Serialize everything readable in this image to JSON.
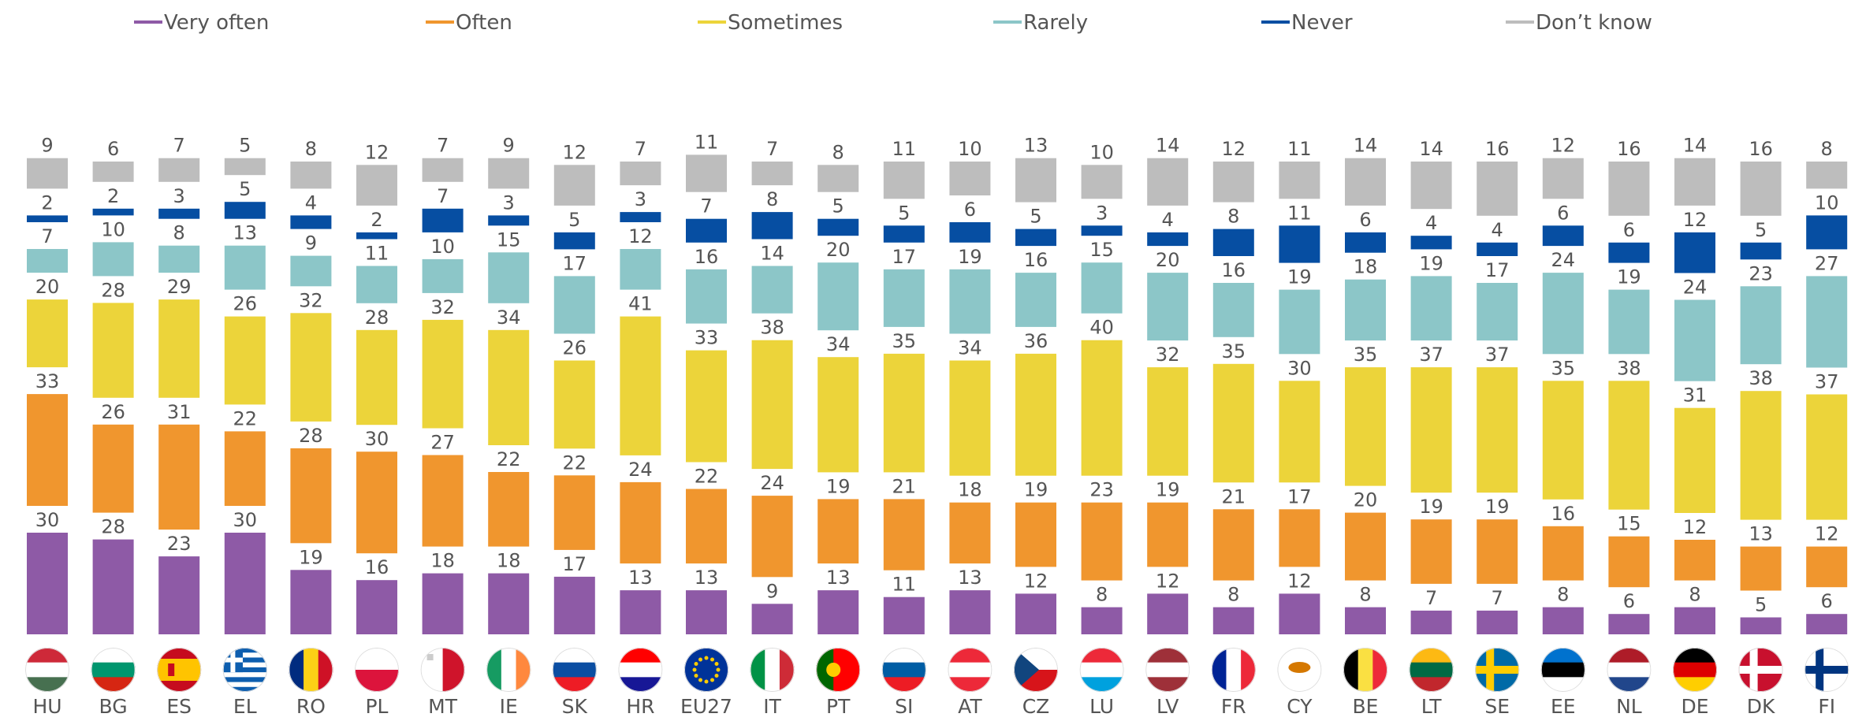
{
  "chart_data": {
    "type": "bar",
    "stacked": true,
    "categories": [
      "HU",
      "BG",
      "ES",
      "EL",
      "RO",
      "PL",
      "MT",
      "IE",
      "SK",
      "HR",
      "EU27",
      "IT",
      "PT",
      "SI",
      "AT",
      "CZ",
      "LU",
      "LV",
      "FR",
      "CY",
      "BE",
      "LT",
      "SE",
      "EE",
      "NL",
      "DE",
      "DK",
      "FI"
    ],
    "series": [
      {
        "name": "Very often",
        "color": "#8e5aa6",
        "values": [
          30,
          28,
          23,
          30,
          19,
          16,
          18,
          18,
          17,
          13,
          13,
          9,
          13,
          11,
          13,
          12,
          8,
          12,
          8,
          12,
          8,
          7,
          7,
          8,
          6,
          8,
          5,
          6
        ]
      },
      {
        "name": "Often",
        "color": "#f0962e",
        "values": [
          33,
          26,
          31,
          22,
          28,
          30,
          27,
          22,
          22,
          24,
          22,
          24,
          19,
          21,
          18,
          19,
          23,
          19,
          21,
          17,
          20,
          19,
          19,
          16,
          15,
          12,
          13,
          12
        ]
      },
      {
        "name": "Sometimes",
        "color": "#ecd43a",
        "values": [
          20,
          28,
          29,
          26,
          32,
          28,
          32,
          34,
          26,
          41,
          33,
          38,
          34,
          35,
          34,
          36,
          40,
          32,
          35,
          30,
          35,
          37,
          37,
          35,
          38,
          31,
          38,
          37
        ]
      },
      {
        "name": "Rarely",
        "color": "#8cc6c8",
        "values": [
          7,
          10,
          8,
          13,
          9,
          11,
          10,
          15,
          17,
          12,
          16,
          14,
          20,
          17,
          19,
          16,
          15,
          20,
          16,
          19,
          18,
          19,
          17,
          24,
          19,
          24,
          23,
          27
        ]
      },
      {
        "name": "Never",
        "color": "#064ea2",
        "values": [
          2,
          2,
          3,
          5,
          4,
          2,
          7,
          3,
          5,
          3,
          7,
          8,
          5,
          5,
          6,
          5,
          3,
          4,
          8,
          11,
          6,
          4,
          4,
          6,
          6,
          12,
          5,
          10
        ]
      },
      {
        "name": "Don’t know",
        "color": "#bdbdbd",
        "values": [
          9,
          6,
          7,
          5,
          8,
          12,
          7,
          9,
          12,
          7,
          11,
          7,
          8,
          11,
          10,
          13,
          10,
          14,
          12,
          11,
          14,
          14,
          16,
          12,
          16,
          14,
          16,
          8
        ]
      }
    ],
    "legend_position": "top",
    "grid": false
  }
}
